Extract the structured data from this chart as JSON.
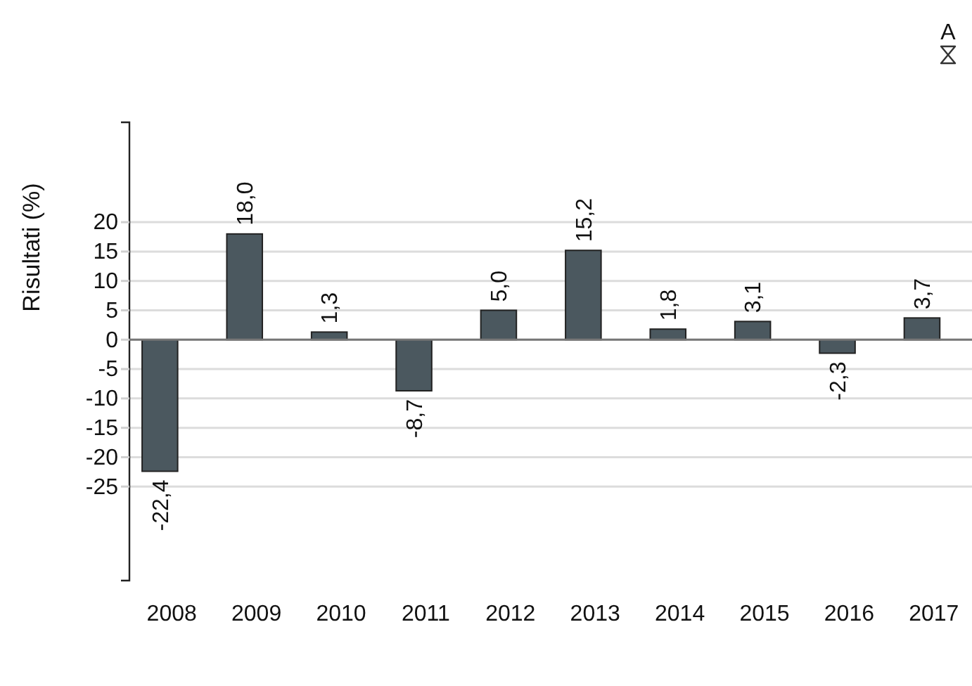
{
  "chart_data": {
    "type": "bar",
    "ylabel": "Risultati (%)",
    "categories": [
      "2008",
      "2009",
      "2010",
      "2011",
      "2012",
      "2013",
      "2014",
      "2015",
      "2016",
      "2017"
    ],
    "values": [
      -22.4,
      18.0,
      1.3,
      -8.7,
      5.0,
      15.2,
      1.8,
      3.1,
      -2.3,
      3.7
    ],
    "value_labels": [
      "-22,4",
      "18,0",
      "1,3",
      "-8,7",
      "5,0",
      "15,2",
      "1,8",
      "3,1",
      "-2,3",
      "3,7"
    ],
    "color": "#4b585f",
    "ylim": [
      -41,
      37
    ],
    "yticks": [
      -25,
      -20,
      -15,
      -10,
      -5,
      0,
      5,
      10,
      15,
      20
    ],
    "grid": "y",
    "annotations": [
      "A"
    ]
  }
}
